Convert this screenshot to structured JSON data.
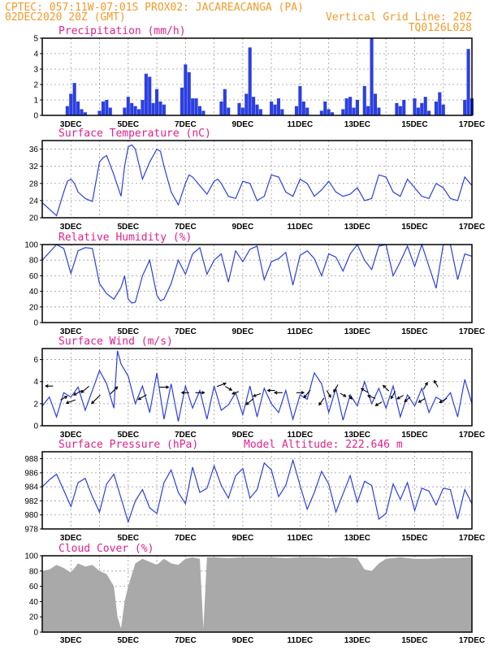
{
  "header": {
    "line1_left": "CPTEC:  057:11W-07:01S  PROX02: JACAREACANGA (PA)",
    "line2_left": "02DEC2020 20Z (GMT)",
    "line2_right": "Vertical Grid Line: 20Z",
    "line3_right": "TQ0126L028"
  },
  "colors": {
    "header": "#f39a2a",
    "panel_title": "#e0218a",
    "series": "#2b3fe0",
    "cloud_fill": "#a9a9a9",
    "arrow": "#000000"
  },
  "chart_data": [
    {
      "id": "precip",
      "type": "bar",
      "title": "Precipitation (mm/h)",
      "ylim": [
        0,
        5
      ],
      "yticks": [
        0,
        1,
        2,
        3,
        4,
        5
      ],
      "xlabels": [
        "3DEC",
        "5DEC",
        "7DEC",
        "9DEC",
        "11DEC",
        "13DEC",
        "15DEC",
        "17DEC"
      ],
      "x_days": [
        2.875,
        3.0,
        3.125,
        3.25,
        3.375,
        3.5,
        4.0,
        4.125,
        4.25,
        4.375,
        4.875,
        5.0,
        5.125,
        5.25,
        5.375,
        5.5,
        5.625,
        5.75,
        5.875,
        6.0,
        6.125,
        6.25,
        6.875,
        7.0,
        7.125,
        7.25,
        7.375,
        7.5,
        7.625,
        8.25,
        8.375,
        8.5,
        8.875,
        9.0,
        9.125,
        9.25,
        9.375,
        9.5,
        9.625,
        10.0,
        10.125,
        10.25,
        10.375,
        10.875,
        11.0,
        11.125,
        11.25,
        11.75,
        11.875,
        12.0,
        12.125,
        12.5,
        12.625,
        12.75,
        12.875,
        13.0,
        13.25,
        13.375,
        13.5,
        13.625,
        13.75,
        14.375,
        14.5,
        14.625,
        15.0,
        15.125,
        15.25,
        15.375,
        15.5,
        15.75,
        15.875,
        16.0,
        16.75,
        16.875,
        17.0
      ],
      "values": [
        0.6,
        1.4,
        2.1,
        0.9,
        0.4,
        0.2,
        0.3,
        0.9,
        1.0,
        0.5,
        0.5,
        1.2,
        0.8,
        0.6,
        0.4,
        1.0,
        2.7,
        2.5,
        0.8,
        1.7,
        0.9,
        0.7,
        1.8,
        3.3,
        2.8,
        1.1,
        1.1,
        0.6,
        0.3,
        0.9,
        1.7,
        0.5,
        0.8,
        0.5,
        1.4,
        4.4,
        1.2,
        0.7,
        0.4,
        0.9,
        0.7,
        1.1,
        0.4,
        0.6,
        1.9,
        0.9,
        0.5,
        0.3,
        0.9,
        0.4,
        0.2,
        0.4,
        1.1,
        1.2,
        0.5,
        1.0,
        1.9,
        0.6,
        5.0,
        1.4,
        0.5,
        0.8,
        0.6,
        1.0,
        1.1,
        0.5,
        0.8,
        1.2,
        0.3,
        0.9,
        1.5,
        0.7,
        1.0,
        4.3,
        1.1
      ]
    },
    {
      "id": "temp",
      "type": "line",
      "title": "Surface Temperature (nC)",
      "ylim": [
        20,
        38
      ],
      "yticks": [
        20,
        24,
        28,
        32,
        36
      ],
      "xlabels": [
        "3DEC",
        "5DEC",
        "7DEC",
        "9DEC",
        "11DEC",
        "13DEC",
        "15DEC",
        "17DEC"
      ],
      "x": [
        2.0,
        2.25,
        2.5,
        2.75,
        2.875,
        3.0,
        3.125,
        3.25,
        3.5,
        3.75,
        4.0,
        4.125,
        4.25,
        4.5,
        4.75,
        4.875,
        5.0,
        5.125,
        5.25,
        5.5,
        5.75,
        6.0,
        6.125,
        6.25,
        6.5,
        6.75,
        7.0,
        7.125,
        7.25,
        7.5,
        7.75,
        8.0,
        8.125,
        8.25,
        8.5,
        8.75,
        9.0,
        9.25,
        9.5,
        9.75,
        10.0,
        10.25,
        10.5,
        10.75,
        11.0,
        11.25,
        11.5,
        11.75,
        12.0,
        12.25,
        12.5,
        12.75,
        13.0,
        13.25,
        13.5,
        13.75,
        14.0,
        14.25,
        14.5,
        14.75,
        15.0,
        15.25,
        15.5,
        15.75,
        16.0,
        16.25,
        16.5,
        16.75,
        17.0
      ],
      "y": [
        23.5,
        22.0,
        20.5,
        26.0,
        28.5,
        29.0,
        28.0,
        26.0,
        24.5,
        23.8,
        33.0,
        34.0,
        34.5,
        30.0,
        25.0,
        32.0,
        36.5,
        37.0,
        36.0,
        29.0,
        33.0,
        36.0,
        35.5,
        32.0,
        26.0,
        23.0,
        28.0,
        30.0,
        29.5,
        27.5,
        25.5,
        28.5,
        29.0,
        28.0,
        25.0,
        24.5,
        28.5,
        28.0,
        24.0,
        25.0,
        30.0,
        29.5,
        26.0,
        25.0,
        29.0,
        28.0,
        25.0,
        26.5,
        28.5,
        26.0,
        25.0,
        25.5,
        27.0,
        24.0,
        24.5,
        30.0,
        29.5,
        26.0,
        25.0,
        29.0,
        27.0,
        25.0,
        24.5,
        28.0,
        27.0,
        24.5,
        24.0,
        29.5,
        27.5
      ]
    },
    {
      "id": "rh",
      "type": "line",
      "title": "Relative Humidity (%)",
      "ylim": [
        0,
        100
      ],
      "yticks": [
        0,
        20,
        40,
        60,
        80,
        100
      ],
      "xlabels": [
        "3DEC",
        "5DEC",
        "7DEC",
        "9DEC",
        "11DEC",
        "13DEC",
        "15DEC",
        "17DEC"
      ],
      "x": [
        2.0,
        2.25,
        2.5,
        2.75,
        3.0,
        3.25,
        3.5,
        3.75,
        4.0,
        4.25,
        4.5,
        4.75,
        4.875,
        5.0,
        5.125,
        5.25,
        5.5,
        5.75,
        6.0,
        6.125,
        6.25,
        6.5,
        6.75,
        7.0,
        7.25,
        7.5,
        7.75,
        8.0,
        8.25,
        8.5,
        8.75,
        9.0,
        9.25,
        9.5,
        9.75,
        10.0,
        10.25,
        10.5,
        10.75,
        11.0,
        11.25,
        11.5,
        11.75,
        12.0,
        12.25,
        12.5,
        12.75,
        13.0,
        13.25,
        13.5,
        13.75,
        14.0,
        14.25,
        14.5,
        14.75,
        15.0,
        15.25,
        15.5,
        15.75,
        16.0,
        16.25,
        16.5,
        16.75,
        17.0
      ],
      "y": [
        80,
        90,
        100,
        95,
        63,
        92,
        96,
        95,
        50,
        37,
        30,
        45,
        60,
        30,
        25,
        26,
        60,
        80,
        35,
        28,
        30,
        50,
        80,
        62,
        88,
        96,
        62,
        80,
        88,
        52,
        92,
        78,
        94,
        98,
        55,
        78,
        82,
        90,
        48,
        86,
        92,
        82,
        60,
        88,
        84,
        66,
        88,
        100,
        80,
        68,
        98,
        100,
        60,
        78,
        98,
        72,
        100,
        72,
        44,
        100,
        100,
        55,
        88,
        85
      ]
    },
    {
      "id": "wind",
      "type": "line",
      "title": "Surface Wind (m/s)",
      "ylim": [
        0,
        7
      ],
      "yticks": [
        0,
        2,
        4,
        6
      ],
      "xlabels": [
        "3DEC",
        "5DEC",
        "7DEC",
        "9DEC",
        "11DEC",
        "13DEC",
        "15DEC",
        "17DEC"
      ],
      "x": [
        2.0,
        2.25,
        2.5,
        2.75,
        3.0,
        3.25,
        3.5,
        3.75,
        4.0,
        4.25,
        4.5,
        4.625,
        4.75,
        5.0,
        5.25,
        5.5,
        5.75,
        6.0,
        6.25,
        6.5,
        6.75,
        7.0,
        7.25,
        7.5,
        7.75,
        8.0,
        8.25,
        8.5,
        8.75,
        9.0,
        9.25,
        9.5,
        9.75,
        10.0,
        10.25,
        10.5,
        10.75,
        11.0,
        11.25,
        11.5,
        11.75,
        12.0,
        12.25,
        12.5,
        12.75,
        13.0,
        13.25,
        13.5,
        13.75,
        14.0,
        14.25,
        14.5,
        14.75,
        15.0,
        15.25,
        15.5,
        15.75,
        16.0,
        16.25,
        16.5,
        16.75,
        17.0
      ],
      "y": [
        1.8,
        2.6,
        0.8,
        3.0,
        2.6,
        3.5,
        1.4,
        3.2,
        5.0,
        3.8,
        1.6,
        6.8,
        5.6,
        4.5,
        2.0,
        3.6,
        1.2,
        4.8,
        0.6,
        3.8,
        0.4,
        3.6,
        1.6,
        3.2,
        0.6,
        3.6,
        1.4,
        1.9,
        3.0,
        1.0,
        3.6,
        0.8,
        3.4,
        2.0,
        1.2,
        3.2,
        0.6,
        2.8,
        2.4,
        4.8,
        3.8,
        1.2,
        3.4,
        0.5,
        2.8,
        1.8,
        4.0,
        2.0,
        3.4,
        1.6,
        3.6,
        0.8,
        2.8,
        1.8,
        3.4,
        1.2,
        2.6,
        2.2,
        3.0,
        0.8,
        4.2,
        2.0
      ]
    },
    {
      "id": "pres",
      "type": "line",
      "title": "Surface Pressure (hPa)",
      "annotation": "Model Altitude: 222.646 m",
      "ylim": [
        978,
        989
      ],
      "yticks": [
        978,
        980,
        982,
        984,
        986,
        988
      ],
      "xlabels": [
        "3DEC",
        "5DEC",
        "7DEC",
        "9DEC",
        "11DEC",
        "13DEC",
        "15DEC",
        "17DEC"
      ],
      "x": [
        2.0,
        2.25,
        2.5,
        2.75,
        3.0,
        3.25,
        3.5,
        3.75,
        4.0,
        4.25,
        4.5,
        4.75,
        5.0,
        5.25,
        5.5,
        5.75,
        6.0,
        6.25,
        6.5,
        6.75,
        7.0,
        7.25,
        7.5,
        7.75,
        8.0,
        8.25,
        8.5,
        8.75,
        9.0,
        9.25,
        9.5,
        9.75,
        10.0,
        10.25,
        10.5,
        10.75,
        11.0,
        11.25,
        11.5,
        11.75,
        12.0,
        12.25,
        12.5,
        12.75,
        13.0,
        13.25,
        13.5,
        13.75,
        14.0,
        14.25,
        14.5,
        14.75,
        15.0,
        15.25,
        15.5,
        15.75,
        16.0,
        16.25,
        16.5,
        16.75,
        17.0
      ],
      "y": [
        984.0,
        985.0,
        985.8,
        983.5,
        981.2,
        984.6,
        985.2,
        982.6,
        980.4,
        984.4,
        985.8,
        982.4,
        979.0,
        982.0,
        983.6,
        981.0,
        980.2,
        984.6,
        986.4,
        983.2,
        981.6,
        986.8,
        983.2,
        983.8,
        987.0,
        984.2,
        982.4,
        985.6,
        986.6,
        982.4,
        983.6,
        987.4,
        986.4,
        982.6,
        984.2,
        987.8,
        984.2,
        980.8,
        983.2,
        986.2,
        984.4,
        980.4,
        983.0,
        985.6,
        981.8,
        984.8,
        984.2,
        979.4,
        980.2,
        984.4,
        982.2,
        984.6,
        980.6,
        983.8,
        983.4,
        981.4,
        983.8,
        983.6,
        979.4,
        983.6,
        981.6
      ]
    },
    {
      "id": "cloud",
      "type": "area",
      "title": "Cloud Cover (%)",
      "ylim": [
        0,
        100
      ],
      "yticks": [
        0,
        20,
        40,
        60,
        80,
        100
      ],
      "xlabels": [
        "3DEC",
        "5DEC",
        "7DEC",
        "9DEC",
        "11DEC",
        "13DEC",
        "15DEC",
        "17DEC"
      ],
      "x": [
        2.0,
        2.25,
        2.5,
        2.75,
        3.0,
        3.25,
        3.5,
        3.75,
        4.0,
        4.25,
        4.5,
        4.625,
        4.75,
        4.875,
        5.0,
        5.25,
        5.5,
        5.75,
        6.0,
        6.25,
        6.5,
        6.75,
        6.875,
        7.0,
        7.25,
        7.5,
        7.625,
        7.75,
        8.0,
        8.5,
        9.0,
        9.5,
        10.0,
        10.5,
        11.0,
        11.5,
        12.0,
        12.5,
        13.0,
        13.25,
        13.5,
        13.75,
        14.0,
        14.5,
        15.0,
        15.5,
        16.0,
        16.5,
        17.0
      ],
      "y": [
        80,
        82,
        88,
        84,
        78,
        90,
        86,
        88,
        80,
        76,
        60,
        20,
        5,
        40,
        60,
        90,
        96,
        92,
        88,
        96,
        90,
        88,
        92,
        96,
        98,
        96,
        5,
        98,
        98,
        97,
        98,
        98,
        98,
        97,
        98,
        98,
        97,
        98,
        97,
        82,
        80,
        90,
        96,
        98,
        96,
        96,
        97,
        97,
        98
      ]
    },
    {
      "id": "wind_arrows",
      "type": "scatter",
      "x": [
        2.25,
        2.75,
        3.0,
        3.25,
        3.5,
        3.875,
        4.5,
        5.5,
        6.25,
        7.0,
        7.5,
        8.25,
        8.5,
        8.75,
        9.25,
        9.5,
        10.0,
        10.25,
        11.0,
        11.25,
        11.75,
        12.0,
        12.25,
        12.5,
        12.75,
        13.25,
        13.5,
        13.75,
        14.0,
        14.25,
        14.5,
        14.75,
        15.25,
        15.375,
        15.75,
        16.0
      ],
      "y": [
        3.6,
        2.5,
        2.2,
        3.0,
        3.3,
        2.4,
        3.2,
        2.6,
        3.5,
        3.0,
        3.0,
        3.7,
        3.4,
        3.0,
        2.2,
        2.8,
        3.2,
        3.0,
        3.0,
        2.9,
        2.2,
        2.9,
        3.4,
        2.8,
        2.6,
        3.2,
        2.6,
        2.0,
        3.4,
        2.8,
        2.6,
        2.4,
        2.3,
        3.6,
        3.8,
        2.3
      ],
      "dir_deg": [
        180,
        30,
        200,
        210,
        220,
        225,
        45,
        210,
        0,
        180,
        0,
        20,
        330,
        200,
        220,
        200,
        180,
        180,
        0,
        230,
        235,
        300,
        240,
        330,
        310,
        150,
        160,
        210,
        135,
        240,
        210,
        220,
        210,
        60,
        120,
        210
      ],
      "speed": [
        1.6,
        1.6,
        2.4,
        2.4,
        2.6,
        3.4,
        2.6,
        2.4,
        2.2,
        1.6,
        2.2,
        2.4,
        1.6,
        1.4,
        2.4,
        1.8,
        1.6,
        1.8,
        1.6,
        2.6,
        2.0,
        1.8,
        2.0,
        1.2,
        0.6,
        1.6,
        1.8,
        1.6,
        1.8,
        2.0,
        1.4,
        1.6,
        1.6,
        1.8,
        1.6,
        2.0
      ]
    }
  ]
}
